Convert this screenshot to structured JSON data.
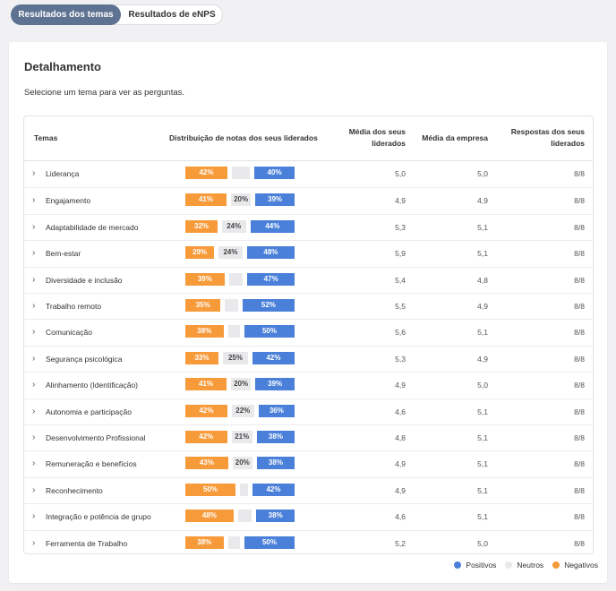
{
  "tabs": [
    {
      "label": "Resultados dos temas",
      "active": true
    },
    {
      "label": "Resultados de eNPS",
      "active": false
    }
  ],
  "card": {
    "title": "Detalhamento",
    "subtitle": "Selecione um tema para ver as perguntas."
  },
  "table": {
    "headers": {
      "themes": "Temas",
      "distribution": "Distribuição de notas dos seus liderados",
      "avg_team_line1": "Média dos seus",
      "avg_team_line2": "liderados",
      "avg_company": "Média da empresa",
      "responses_line1": "Respostas dos seus",
      "responses_line2": "liderados"
    },
    "rows": [
      {
        "theme": "Liderança",
        "neg": 42,
        "neu": 18,
        "pos": 40,
        "neg_label": "42%",
        "neu_label": "",
        "pos_label": "40%",
        "avg_team": "5,0",
        "avg_company": "5,0",
        "responses": "8/8"
      },
      {
        "theme": "Engajamento",
        "neg": 41,
        "neu": 20,
        "pos": 39,
        "neg_label": "41%",
        "neu_label": "20%",
        "pos_label": "39%",
        "avg_team": "4,9",
        "avg_company": "4,9",
        "responses": "8/8"
      },
      {
        "theme": "Adaptabilidade de mercado",
        "neg": 32,
        "neu": 24,
        "pos": 44,
        "neg_label": "32%",
        "neu_label": "24%",
        "pos_label": "44%",
        "avg_team": "5,3",
        "avg_company": "5,1",
        "responses": "8/8"
      },
      {
        "theme": "Bem-estar",
        "neg": 29,
        "neu": 24,
        "pos": 48,
        "neg_label": "29%",
        "neu_label": "24%",
        "pos_label": "48%",
        "avg_team": "5,9",
        "avg_company": "5,1",
        "responses": "8/8"
      },
      {
        "theme": "Diversidade e inclusão",
        "neg": 39,
        "neu": 14,
        "pos": 47,
        "neg_label": "39%",
        "neu_label": "",
        "pos_label": "47%",
        "avg_team": "5,4",
        "avg_company": "4,8",
        "responses": "8/8"
      },
      {
        "theme": "Trabalho remoto",
        "neg": 35,
        "neu": 13,
        "pos": 52,
        "neg_label": "35%",
        "neu_label": "",
        "pos_label": "52%",
        "avg_team": "5,5",
        "avg_company": "4,9",
        "responses": "8/8"
      },
      {
        "theme": "Comunicação",
        "neg": 38,
        "neu": 12,
        "pos": 50,
        "neg_label": "38%",
        "neu_label": "",
        "pos_label": "50%",
        "avg_team": "5,6",
        "avg_company": "5,1",
        "responses": "8/8"
      },
      {
        "theme": "Segurança psicológica",
        "neg": 33,
        "neu": 25,
        "pos": 42,
        "neg_label": "33%",
        "neu_label": "25%",
        "pos_label": "42%",
        "avg_team": "5,3",
        "avg_company": "4,9",
        "responses": "8/8"
      },
      {
        "theme": "Alinhamento (Identificação)",
        "neg": 41,
        "neu": 20,
        "pos": 39,
        "neg_label": "41%",
        "neu_label": "20%",
        "pos_label": "39%",
        "avg_team": "4,9",
        "avg_company": "5,0",
        "responses": "8/8"
      },
      {
        "theme": "Autonomia e participação",
        "neg": 42,
        "neu": 22,
        "pos": 36,
        "neg_label": "42%",
        "neu_label": "22%",
        "pos_label": "36%",
        "avg_team": "4,6",
        "avg_company": "5,1",
        "responses": "8/8"
      },
      {
        "theme": "Desenvolvimento Profissional",
        "neg": 42,
        "neu": 21,
        "pos": 38,
        "neg_label": "42%",
        "neu_label": "21%",
        "pos_label": "38%",
        "avg_team": "4,8",
        "avg_company": "5,1",
        "responses": "8/8"
      },
      {
        "theme": "Remuneração e benefícios",
        "neg": 43,
        "neu": 20,
        "pos": 38,
        "neg_label": "43%",
        "neu_label": "20%",
        "pos_label": "38%",
        "avg_team": "4,9",
        "avg_company": "5,1",
        "responses": "8/8"
      },
      {
        "theme": "Reconhecimento",
        "neg": 50,
        "neu": 8,
        "pos": 42,
        "neg_label": "50%",
        "neu_label": "",
        "pos_label": "42%",
        "avg_team": "4,9",
        "avg_company": "5,1",
        "responses": "8/8"
      },
      {
        "theme": "Integração e potência de grupo",
        "neg": 48,
        "neu": 14,
        "pos": 38,
        "neg_label": "48%",
        "neu_label": "",
        "pos_label": "38%",
        "avg_team": "4,6",
        "avg_company": "5,1",
        "responses": "8/8"
      },
      {
        "theme": "Ferramenta de Trabalho",
        "neg": 38,
        "neu": 12,
        "pos": 50,
        "neg_label": "38%",
        "neu_label": "",
        "pos_label": "50%",
        "avg_team": "5,2",
        "avg_company": "5,0",
        "responses": "8/8"
      }
    ]
  },
  "legend": [
    {
      "label": "Positivos",
      "color": "#4a80d9"
    },
    {
      "label": "Neutros",
      "color": "#e9e9ec"
    },
    {
      "label": "Negativos",
      "color": "#f79a3a"
    }
  ],
  "icons": {
    "row_expand": "chevron-right-icon",
    "legend_marker": "dot-icon"
  }
}
